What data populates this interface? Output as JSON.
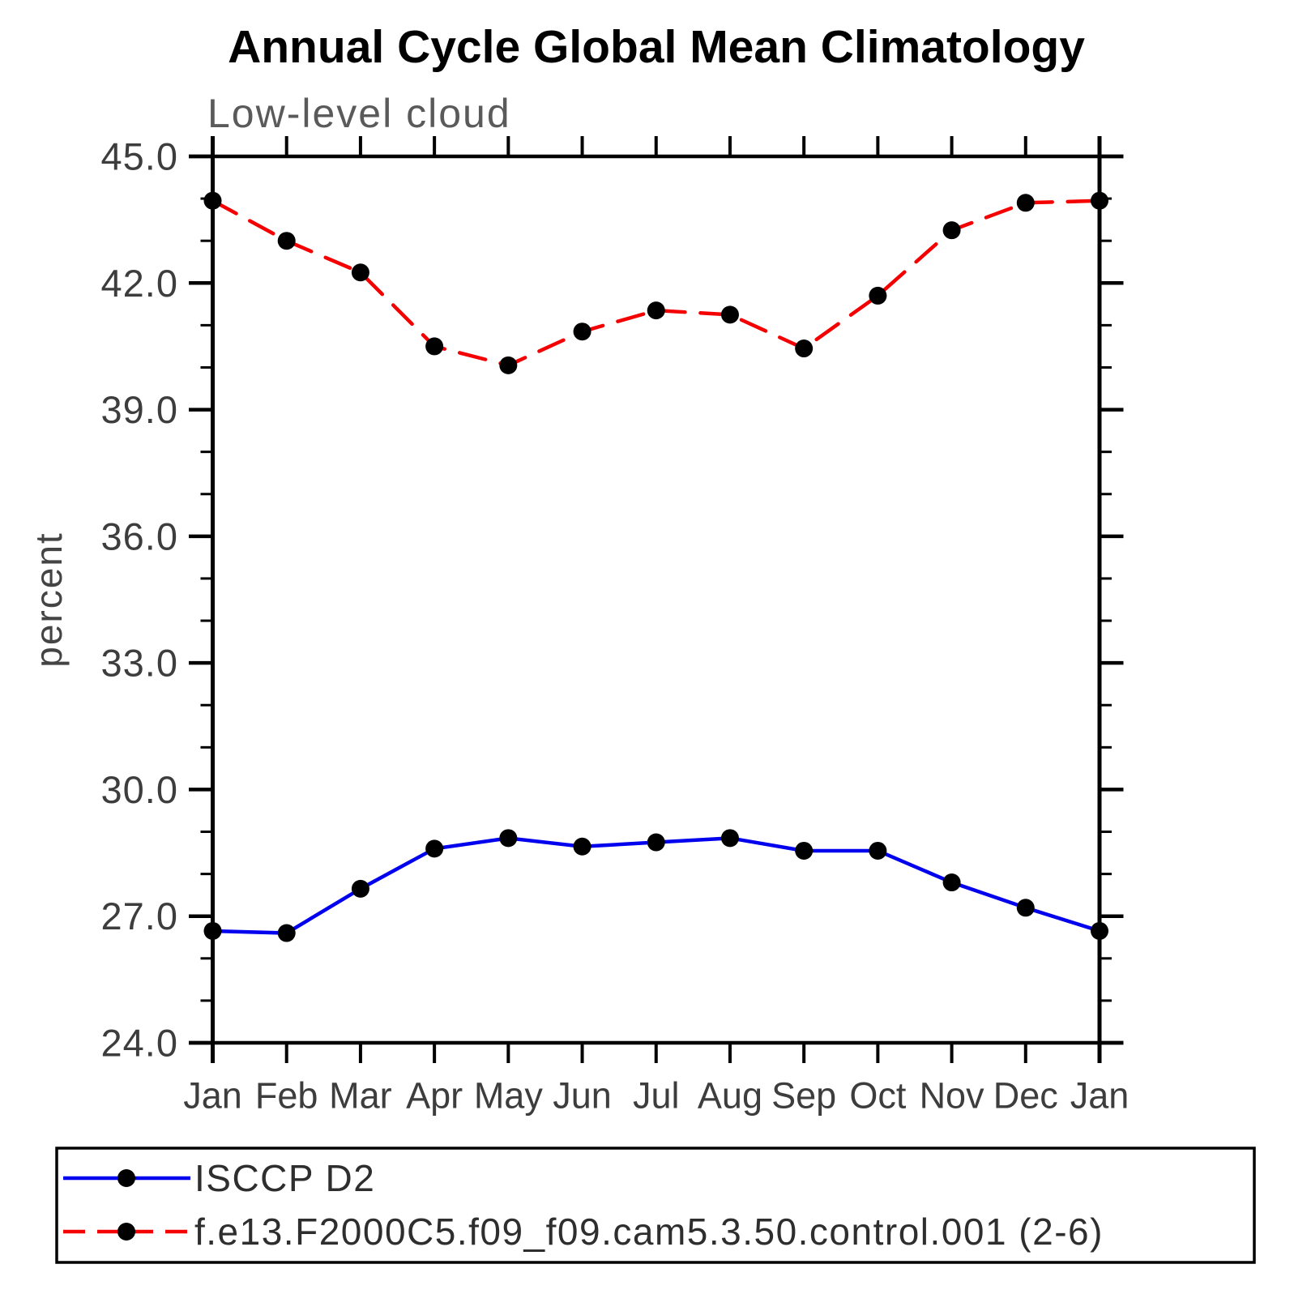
{
  "page": {
    "background": "#ffffff"
  },
  "header": {
    "title": "Annual Cycle Global Mean Climatology",
    "subtitle": "Low-level cloud"
  },
  "chart_data": {
    "type": "line",
    "title": "Annual Cycle Global Mean Climatology",
    "subtitle": "Low-level cloud",
    "xlabel": "",
    "ylabel": "percent",
    "categories": [
      "Jan",
      "Feb",
      "Mar",
      "Apr",
      "May",
      "Jun",
      "Jul",
      "Aug",
      "Sep",
      "Oct",
      "Nov",
      "Dec",
      "Jan"
    ],
    "ylim": [
      24.0,
      45.0
    ],
    "ytick_major_values": [
      24.0,
      27.0,
      30.0,
      33.0,
      36.0,
      39.0,
      42.0,
      45.0
    ],
    "ytick_major_labels": [
      "24.0",
      "27.0",
      "30.0",
      "33.0",
      "36.0",
      "39.0",
      "42.0",
      "45.0"
    ],
    "ytick_minor_step": 1.0,
    "grid": "off",
    "legend_position": "bottom-left-box",
    "axis_color": "#000000",
    "marker": {
      "shape": "circle",
      "color": "#000000",
      "radius_px": 11
    },
    "series": [
      {
        "name": "ISCCP D2",
        "color": "#0000ee",
        "line_style": "solid",
        "values": [
          26.65,
          26.6,
          27.65,
          28.6,
          28.85,
          28.65,
          28.75,
          28.85,
          28.55,
          28.55,
          27.8,
          27.2,
          26.65
        ]
      },
      {
        "name": "f.e13.F2000C5.f09_f09.cam5.3.50.control.001 (2-6)",
        "color": "#f40000",
        "line_style": "dashed",
        "values": [
          43.95,
          43.0,
          42.25,
          40.5,
          40.05,
          40.85,
          41.35,
          41.25,
          40.45,
          41.7,
          43.25,
          43.9,
          43.95
        ]
      }
    ]
  }
}
